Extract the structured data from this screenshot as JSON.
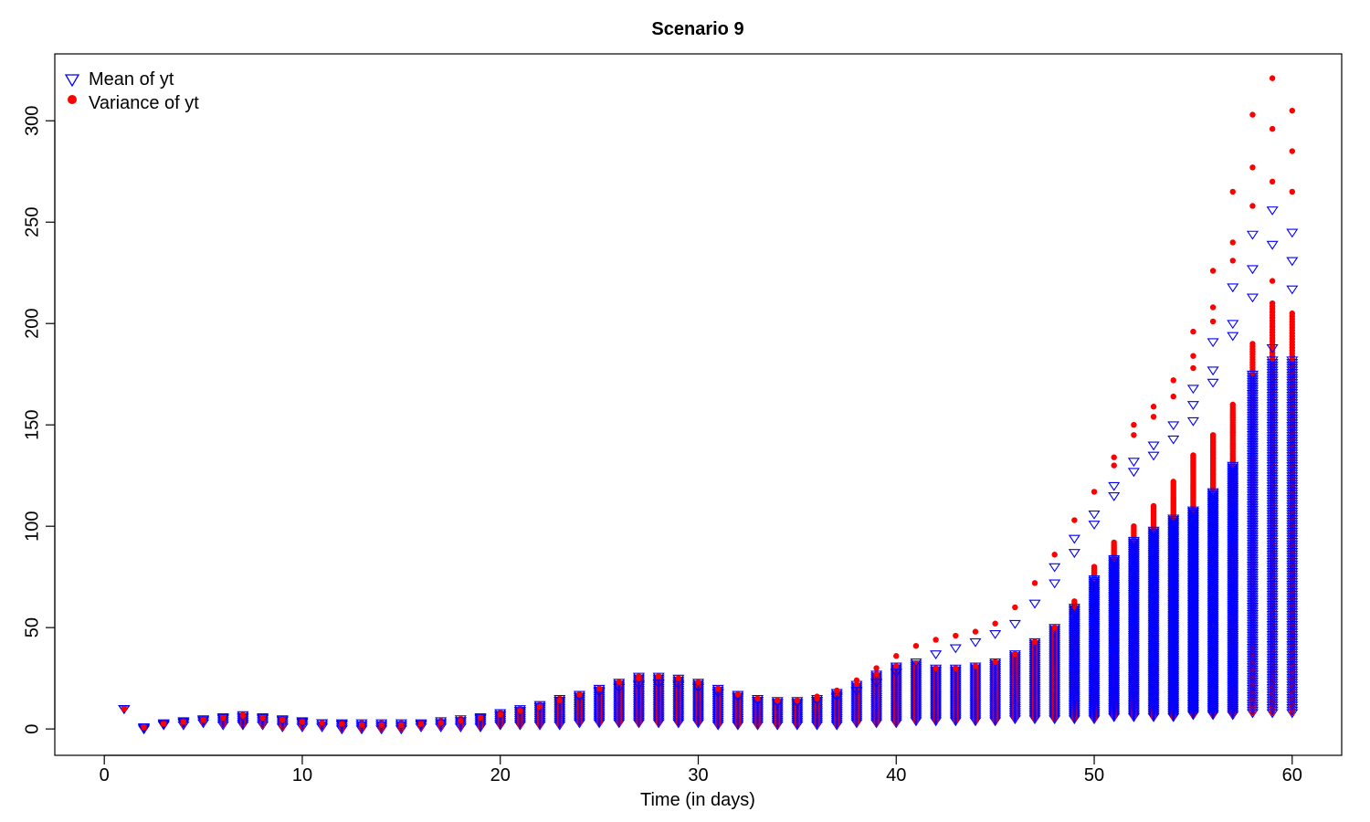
{
  "chart_data": {
    "type": "scatter",
    "title": "Scenario 9",
    "xlabel": "Time (in days)",
    "ylabel": "",
    "xlim": [
      -2.5,
      62.5
    ],
    "ylim": [
      -13,
      333
    ],
    "x_ticks": [
      0,
      10,
      20,
      30,
      40,
      50,
      60
    ],
    "y_ticks": [
      0,
      50,
      100,
      150,
      200,
      250,
      300
    ],
    "grid": false,
    "legend_position": "top-left",
    "series": [
      {
        "name": "Mean of yt",
        "marker": "open-down-triangle",
        "color": "#0000ff",
        "points": [
          [
            1,
            10
          ],
          [
            2,
            1
          ],
          [
            3,
            2.5
          ],
          [
            4,
            3.5
          ],
          [
            5,
            4.5
          ],
          [
            6,
            5.5
          ],
          [
            7,
            6
          ],
          [
            8,
            5.5
          ],
          [
            9,
            4.5
          ],
          [
            10,
            3.5
          ],
          [
            11,
            3
          ],
          [
            12,
            2.5
          ],
          [
            13,
            2
          ],
          [
            14,
            2
          ],
          [
            15,
            2
          ],
          [
            16,
            2.5
          ],
          [
            17,
            3
          ],
          [
            18,
            4
          ],
          [
            19,
            5.5
          ],
          [
            20,
            7
          ],
          [
            21,
            9
          ],
          [
            22,
            11
          ],
          [
            23,
            14
          ],
          [
            24,
            16
          ],
          [
            25,
            18.5
          ],
          [
            26,
            20.5
          ],
          [
            27,
            22
          ],
          [
            28,
            22.5
          ],
          [
            29,
            22
          ],
          [
            30,
            20.5
          ],
          [
            31,
            18
          ],
          [
            32,
            16
          ],
          [
            33,
            14
          ],
          [
            34,
            13
          ],
          [
            35,
            13
          ],
          [
            36,
            14
          ],
          [
            37,
            16
          ],
          [
            38,
            19
          ],
          [
            39,
            23
          ],
          [
            40,
            28
          ],
          [
            41,
            33
          ],
          [
            42,
            37
          ],
          [
            43,
            40
          ],
          [
            44,
            43
          ],
          [
            45,
            47
          ],
          [
            46,
            52
          ],
          [
            47,
            62
          ],
          [
            48,
            72
          ],
          [
            48,
            80
          ],
          [
            49,
            87
          ],
          [
            49,
            94
          ],
          [
            50,
            101
          ],
          [
            50,
            106
          ],
          [
            51,
            115
          ],
          [
            51,
            120
          ],
          [
            52,
            127
          ],
          [
            52,
            132
          ],
          [
            53,
            135
          ],
          [
            53,
            140
          ],
          [
            54,
            143
          ],
          [
            54,
            150
          ],
          [
            55,
            152
          ],
          [
            55,
            160
          ],
          [
            55,
            168
          ],
          [
            56,
            171
          ],
          [
            56,
            177
          ],
          [
            56,
            191
          ],
          [
            57,
            194
          ],
          [
            57,
            200
          ],
          [
            57,
            218
          ],
          [
            58,
            213
          ],
          [
            58,
            227
          ],
          [
            58,
            244
          ],
          [
            59,
            188
          ],
          [
            59,
            239
          ],
          [
            59,
            256
          ],
          [
            60,
            217
          ],
          [
            60,
            231
          ],
          [
            60,
            245
          ]
        ],
        "column_ranges": [
          [
            1,
            10,
            10
          ],
          [
            2,
            0,
            1
          ],
          [
            3,
            2,
            3
          ],
          [
            4,
            2,
            4
          ],
          [
            5,
            3,
            5
          ],
          [
            6,
            2,
            6
          ],
          [
            7,
            2,
            7
          ],
          [
            8,
            2,
            6
          ],
          [
            9,
            1,
            5
          ],
          [
            10,
            1,
            4
          ],
          [
            11,
            1,
            3
          ],
          [
            12,
            0,
            3
          ],
          [
            13,
            0,
            3
          ],
          [
            14,
            0,
            3
          ],
          [
            15,
            0,
            3
          ],
          [
            16,
            1,
            3
          ],
          [
            17,
            1,
            4
          ],
          [
            18,
            1,
            5
          ],
          [
            19,
            1,
            6
          ],
          [
            20,
            2,
            8
          ],
          [
            21,
            2,
            10
          ],
          [
            22,
            2,
            12
          ],
          [
            23,
            2,
            15
          ],
          [
            24,
            3,
            17
          ],
          [
            25,
            3,
            20
          ],
          [
            26,
            3,
            23
          ],
          [
            27,
            3,
            26
          ],
          [
            28,
            3,
            26
          ],
          [
            29,
            3,
            25
          ],
          [
            30,
            3,
            23
          ],
          [
            31,
            2,
            20
          ],
          [
            32,
            2,
            17
          ],
          [
            33,
            2,
            15
          ],
          [
            34,
            2,
            14
          ],
          [
            35,
            2,
            14
          ],
          [
            36,
            2,
            15
          ],
          [
            37,
            2,
            18
          ],
          [
            38,
            3,
            22
          ],
          [
            39,
            3,
            27
          ],
          [
            40,
            3,
            31
          ],
          [
            41,
            4,
            32
          ],
          [
            42,
            4,
            30
          ],
          [
            43,
            4,
            30
          ],
          [
            44,
            4,
            31
          ],
          [
            45,
            4,
            33
          ],
          [
            46,
            5,
            37
          ],
          [
            47,
            5,
            43
          ],
          [
            48,
            5,
            50
          ],
          [
            49,
            5,
            60
          ],
          [
            50,
            5,
            74
          ],
          [
            51,
            6,
            84
          ],
          [
            52,
            6,
            93
          ],
          [
            53,
            6,
            98
          ],
          [
            54,
            6,
            104
          ],
          [
            55,
            7,
            108
          ],
          [
            56,
            7,
            117
          ],
          [
            57,
            7,
            130
          ],
          [
            58,
            8,
            175
          ],
          [
            59,
            8,
            182
          ],
          [
            60,
            8,
            182
          ]
        ]
      },
      {
        "name": "Variance of yt",
        "marker": "filled-circle",
        "color": "#ff0000",
        "points": [
          [
            1,
            10
          ],
          [
            2,
            1
          ],
          [
            3,
            2.5
          ],
          [
            4,
            3.5
          ],
          [
            5,
            4.5
          ],
          [
            6,
            5.5
          ],
          [
            7,
            6.5
          ],
          [
            8,
            5.5
          ],
          [
            9,
            4.5
          ],
          [
            10,
            3.5
          ],
          [
            11,
            3
          ],
          [
            12,
            2.5
          ],
          [
            13,
            2
          ],
          [
            14,
            2
          ],
          [
            15,
            2
          ],
          [
            16,
            2.5
          ],
          [
            17,
            3
          ],
          [
            18,
            4
          ],
          [
            19,
            5.5
          ],
          [
            20,
            7
          ],
          [
            21,
            9
          ],
          [
            22,
            11
          ],
          [
            23,
            14
          ],
          [
            24,
            17
          ],
          [
            25,
            20
          ],
          [
            26,
            23
          ],
          [
            27,
            25
          ],
          [
            28,
            26
          ],
          [
            29,
            25
          ],
          [
            30,
            23
          ],
          [
            31,
            20
          ],
          [
            32,
            17
          ],
          [
            33,
            15
          ],
          [
            34,
            14
          ],
          [
            35,
            14
          ],
          [
            36,
            16
          ],
          [
            37,
            19
          ],
          [
            38,
            24
          ],
          [
            39,
            30
          ],
          [
            40,
            36
          ],
          [
            41,
            41
          ],
          [
            42,
            44
          ],
          [
            43,
            46
          ],
          [
            44,
            48
          ],
          [
            45,
            52
          ],
          [
            46,
            60
          ],
          [
            47,
            72
          ],
          [
            48,
            86
          ],
          [
            49,
            103
          ],
          [
            50,
            117
          ],
          [
            51,
            130
          ],
          [
            51,
            134
          ],
          [
            52,
            145
          ],
          [
            52,
            150
          ],
          [
            53,
            154
          ],
          [
            53,
            159
          ],
          [
            54,
            164
          ],
          [
            54,
            172
          ],
          [
            55,
            178
          ],
          [
            55,
            184
          ],
          [
            55,
            196
          ],
          [
            56,
            201
          ],
          [
            56,
            208
          ],
          [
            56,
            226
          ],
          [
            57,
            231
          ],
          [
            57,
            240
          ],
          [
            57,
            265
          ],
          [
            58,
            258
          ],
          [
            58,
            277
          ],
          [
            58,
            303
          ],
          [
            59,
            221
          ],
          [
            59,
            270
          ],
          [
            59,
            296
          ],
          [
            59,
            321
          ],
          [
            60,
            265
          ],
          [
            60,
            285
          ],
          [
            60,
            305
          ]
        ],
        "column_ranges": [
          [
            1,
            10,
            10
          ],
          [
            2,
            0,
            1
          ],
          [
            3,
            2,
            3
          ],
          [
            4,
            2,
            4
          ],
          [
            5,
            3,
            5
          ],
          [
            6,
            2,
            6
          ],
          [
            7,
            2,
            7
          ],
          [
            8,
            2,
            6
          ],
          [
            9,
            1,
            5
          ],
          [
            10,
            1,
            4
          ],
          [
            11,
            1,
            3
          ],
          [
            12,
            0,
            3
          ],
          [
            13,
            0,
            3
          ],
          [
            14,
            0,
            3
          ],
          [
            15,
            0,
            3
          ],
          [
            16,
            1,
            3
          ],
          [
            17,
            1,
            4
          ],
          [
            18,
            1,
            5
          ],
          [
            19,
            1,
            6
          ],
          [
            20,
            2,
            8
          ],
          [
            21,
            2,
            10
          ],
          [
            22,
            2,
            12
          ],
          [
            23,
            2,
            15
          ],
          [
            24,
            3,
            17
          ],
          [
            25,
            3,
            20
          ],
          [
            26,
            3,
            23
          ],
          [
            27,
            3,
            26
          ],
          [
            28,
            3,
            26
          ],
          [
            29,
            3,
            25
          ],
          [
            30,
            3,
            23
          ],
          [
            31,
            2,
            20
          ],
          [
            32,
            2,
            17
          ],
          [
            33,
            2,
            15
          ],
          [
            34,
            2,
            14
          ],
          [
            35,
            2,
            14
          ],
          [
            36,
            2,
            15
          ],
          [
            37,
            2,
            18
          ],
          [
            38,
            3,
            22
          ],
          [
            39,
            3,
            27
          ],
          [
            40,
            3,
            31
          ],
          [
            41,
            4,
            32
          ],
          [
            42,
            4,
            30
          ],
          [
            43,
            4,
            30
          ],
          [
            44,
            4,
            31
          ],
          [
            45,
            4,
            33
          ],
          [
            46,
            5,
            37
          ],
          [
            47,
            5,
            43
          ],
          [
            48,
            5,
            50
          ],
          [
            49,
            5,
            63
          ],
          [
            50,
            5,
            80
          ],
          [
            51,
            6,
            92
          ],
          [
            52,
            6,
            100
          ],
          [
            53,
            6,
            110
          ],
          [
            54,
            6,
            122
          ],
          [
            55,
            7,
            135
          ],
          [
            56,
            7,
            145
          ],
          [
            57,
            7,
            160
          ],
          [
            58,
            8,
            190
          ],
          [
            59,
            8,
            210
          ],
          [
            60,
            8,
            205
          ]
        ]
      }
    ]
  }
}
